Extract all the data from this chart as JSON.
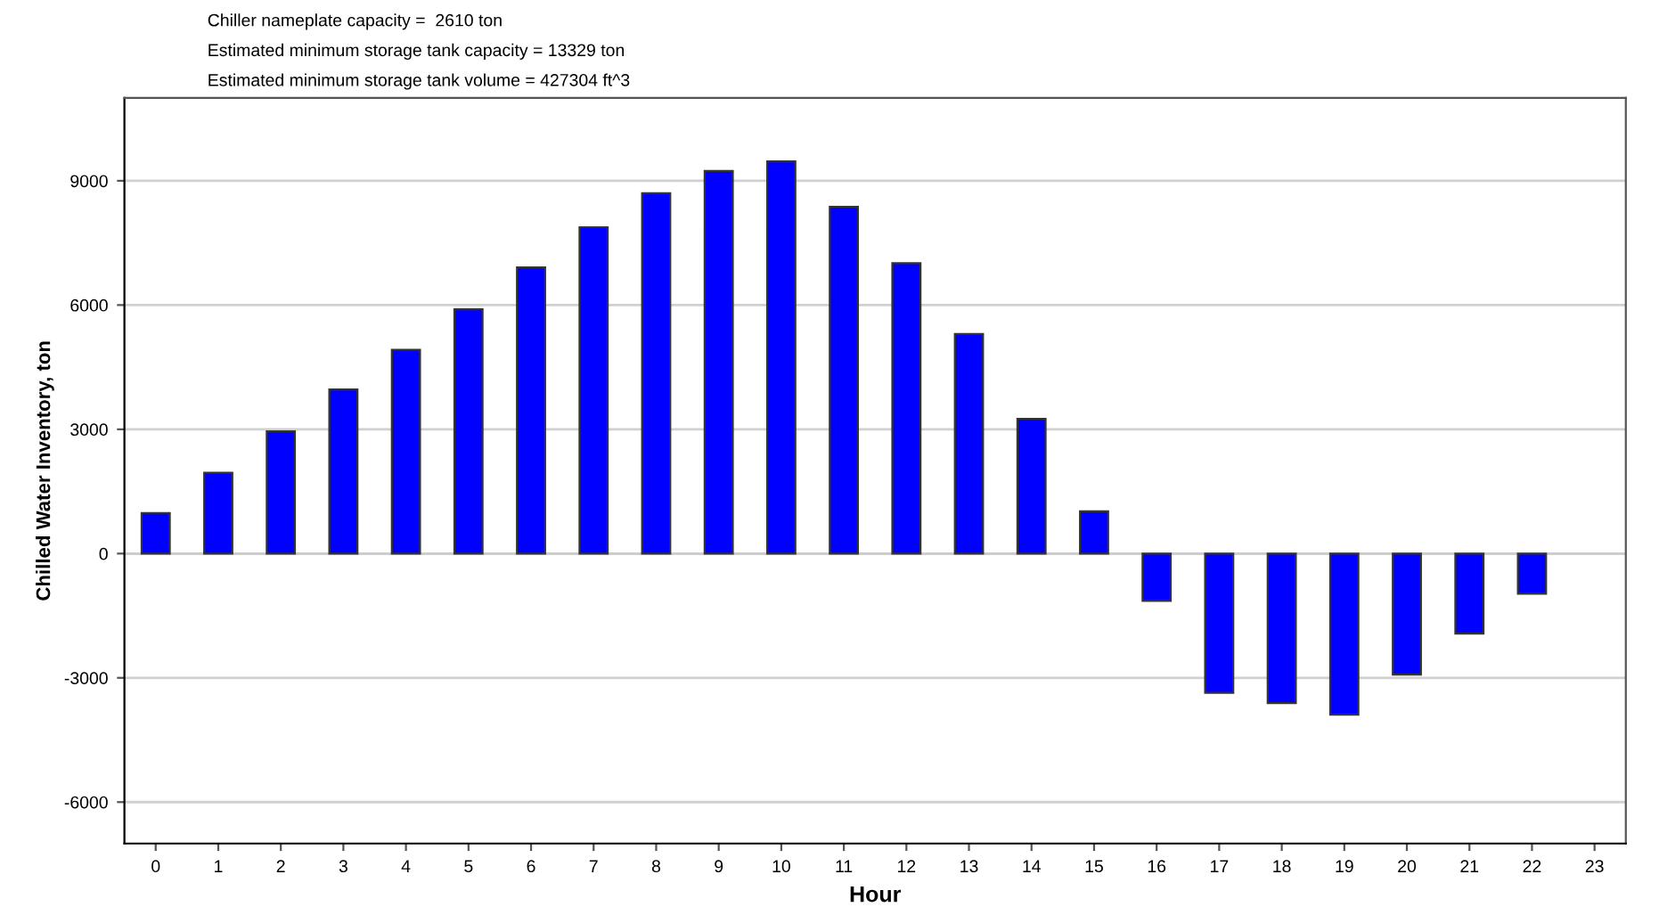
{
  "chart_data": {
    "type": "bar",
    "annotations": [
      "Chiller nameplate capacity =  2610 ton",
      "Estimated minimum storage tank capacity = 13329 ton",
      "Estimated minimum storage tank volume = 427304 ft^3"
    ],
    "xlabel": "Hour",
    "ylabel": "Chilled Water Inventory, ton",
    "categories": [
      "0",
      "1",
      "2",
      "3",
      "4",
      "5",
      "6",
      "7",
      "8",
      "9",
      "10",
      "11",
      "12",
      "13",
      "14",
      "15",
      "16",
      "17",
      "18",
      "19",
      "20",
      "21",
      "22",
      "23"
    ],
    "values": [
      980,
      1950,
      2950,
      3960,
      4920,
      5900,
      6910,
      7880,
      8700,
      9240,
      9470,
      8370,
      7010,
      5300,
      3250,
      1020,
      -1140,
      -3360,
      -3610,
      -3890,
      -2920,
      -1930,
      -970,
      null
    ],
    "color": "#0000ff",
    "ylim": [
      -7000,
      11000
    ],
    "yticks": [
      -6000,
      -3000,
      0,
      3000,
      6000,
      9000
    ],
    "grid": "y"
  }
}
